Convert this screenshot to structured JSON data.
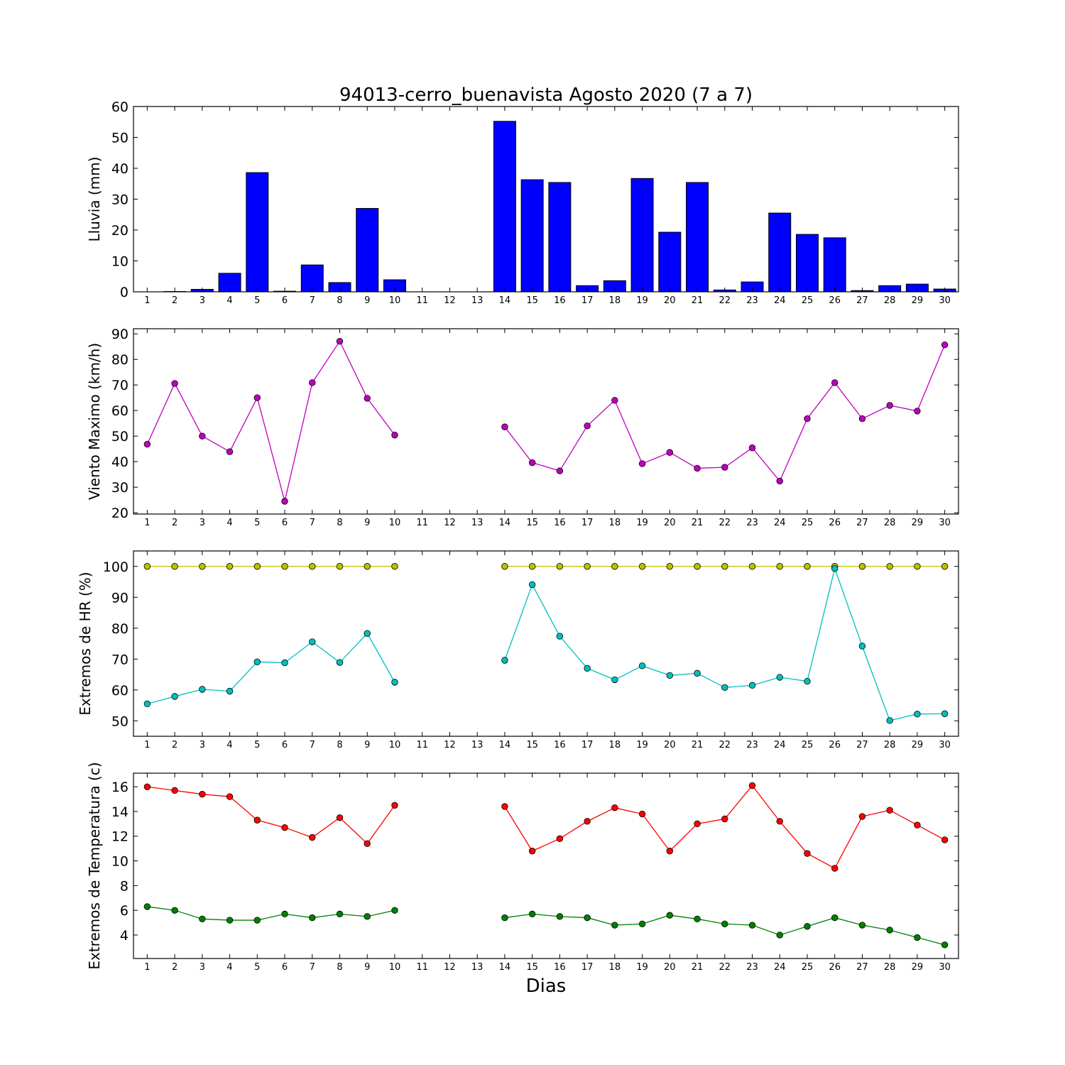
{
  "title": "94013-cerro_buenavista Agosto 2020  (7 a 7)",
  "xlabel": "Dias",
  "chart_data": [
    {
      "type": "bar",
      "ylabel": "Lluvia (mm)",
      "ylim": [
        0,
        60
      ],
      "yticks": [
        0,
        10,
        20,
        30,
        40,
        50,
        60
      ],
      "x": [
        1,
        2,
        3,
        4,
        5,
        6,
        7,
        8,
        9,
        10,
        11,
        12,
        13,
        14,
        15,
        16,
        17,
        18,
        19,
        20,
        21,
        22,
        23,
        24,
        25,
        26,
        27,
        28,
        29,
        30
      ],
      "series": [
        {
          "color": "#0000ff",
          "values": [
            0,
            0.1,
            0.8,
            6,
            38.6,
            0.2,
            8.7,
            3,
            27,
            3.9,
            0,
            0,
            0,
            55.2,
            36.3,
            35.4,
            2,
            3.6,
            36.7,
            19.3,
            35.4,
            0.6,
            3.2,
            25.5,
            18.6,
            17.5,
            0.4,
            2,
            2.5,
            0.9
          ]
        }
      ]
    },
    {
      "type": "line",
      "ylabel": "Viento Maximo (km/h)",
      "ylim": [
        19.5,
        92
      ],
      "yticks": [
        20,
        30,
        40,
        50,
        60,
        70,
        80,
        90
      ],
      "x": [
        1,
        2,
        3,
        4,
        5,
        6,
        7,
        8,
        9,
        10,
        11,
        12,
        13,
        14,
        15,
        16,
        17,
        18,
        19,
        20,
        21,
        22,
        23,
        24,
        25,
        26,
        27,
        28,
        29,
        30
      ],
      "series": [
        {
          "color": "#bf00bf",
          "values": [
            46.8,
            70.6,
            50,
            43.9,
            65,
            24.5,
            70.9,
            87.1,
            64.8,
            50.4,
            null,
            null,
            null,
            53.6,
            39.6,
            36.4,
            54,
            64,
            39.2,
            43.6,
            37.4,
            37.8,
            45.4,
            32.4,
            56.8,
            70.9,
            56.8,
            62,
            59.8,
            85.7
          ]
        }
      ]
    },
    {
      "type": "line",
      "ylabel": "Extremos de HR (%)",
      "ylim": [
        45,
        105
      ],
      "yticks": [
        50,
        60,
        70,
        80,
        90,
        100
      ],
      "x": [
        1,
        2,
        3,
        4,
        5,
        6,
        7,
        8,
        9,
        10,
        11,
        12,
        13,
        14,
        15,
        16,
        17,
        18,
        19,
        20,
        21,
        22,
        23,
        24,
        25,
        26,
        27,
        28,
        29,
        30
      ],
      "series": [
        {
          "color": "#bfbf00",
          "values": [
            100,
            100,
            100,
            100,
            100,
            100,
            100,
            100,
            100,
            100,
            null,
            null,
            null,
            100,
            100,
            100,
            100,
            100,
            100,
            100,
            100,
            100,
            100,
            100,
            100,
            100,
            100,
            100,
            100,
            100
          ]
        },
        {
          "color": "#00bfbf",
          "values": [
            55.5,
            57.9,
            60.2,
            59.6,
            69.1,
            68.8,
            75.6,
            68.9,
            78.3,
            62.5,
            null,
            null,
            null,
            69.6,
            94.1,
            77.4,
            67,
            63.3,
            67.8,
            64.7,
            65.4,
            60.8,
            61.5,
            64.1,
            62.8,
            99.3,
            74.2,
            50.1,
            52.2,
            52.3
          ]
        }
      ]
    },
    {
      "type": "line",
      "ylabel": "Extremos de Temperatura (c)",
      "ylim": [
        2.1,
        17.1
      ],
      "yticks": [
        4,
        6,
        8,
        10,
        12,
        14,
        16
      ],
      "x": [
        1,
        2,
        3,
        4,
        5,
        6,
        7,
        8,
        9,
        10,
        11,
        12,
        13,
        14,
        15,
        16,
        17,
        18,
        19,
        20,
        21,
        22,
        23,
        24,
        25,
        26,
        27,
        28,
        29,
        30
      ],
      "series": [
        {
          "color": "#ff0000",
          "values": [
            16,
            15.7,
            15.4,
            15.2,
            13.3,
            12.7,
            11.9,
            13.5,
            11.4,
            14.5,
            null,
            null,
            null,
            14.4,
            10.8,
            11.8,
            13.2,
            14.3,
            13.8,
            10.8,
            13,
            13.4,
            16.1,
            13.2,
            10.6,
            9.4,
            13.6,
            14.1,
            12.9,
            11.7
          ]
        },
        {
          "color": "#008000",
          "values": [
            6.3,
            6,
            5.3,
            5.2,
            5.2,
            5.7,
            5.4,
            5.7,
            5.5,
            6,
            null,
            null,
            null,
            5.4,
            5.7,
            5.5,
            5.4,
            4.8,
            4.9,
            5.6,
            5.3,
            4.9,
            4.8,
            4,
            4.7,
            5.4,
            4.8,
            4.4,
            3.8,
            3.2
          ]
        }
      ]
    }
  ]
}
